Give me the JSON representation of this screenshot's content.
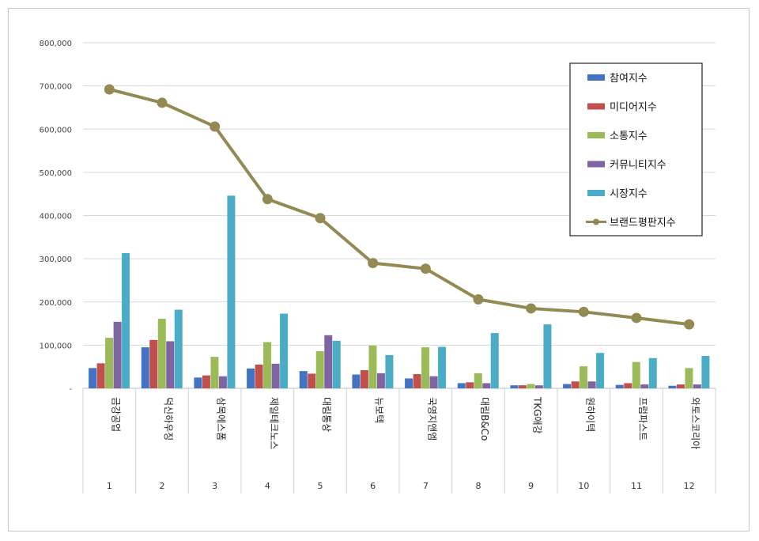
{
  "chart_data": {
    "type": "bar",
    "categories": [
      "금강공업",
      "덕신하우징",
      "삼목에스폼",
      "제일테크노스",
      "대림통상",
      "뉴보텍",
      "국영지앤엠",
      "대림B&Co",
      "TKG애강",
      "원하이텍",
      "프럼파스트",
      "와토스코리아"
    ],
    "rank_labels": [
      "1",
      "2",
      "3",
      "4",
      "5",
      "6",
      "7",
      "8",
      "9",
      "10",
      "11",
      "12"
    ],
    "ylim": [
      0,
      800000
    ],
    "yticks": [
      "-",
      "100,000",
      "200,000",
      "300,000",
      "400,000",
      "500,000",
      "600,000",
      "700,000",
      "800,000"
    ],
    "grid": true,
    "legend_position": "top-right",
    "series": [
      {
        "name": "참여지수",
        "type": "bar",
        "color": "#4472C4",
        "values": [
          47000,
          95000,
          25000,
          46000,
          40000,
          32000,
          23000,
          12000,
          7000,
          10000,
          8000,
          6000
        ]
      },
      {
        "name": "미디어지수",
        "type": "bar",
        "color": "#C0504D",
        "values": [
          58000,
          112000,
          30000,
          55000,
          34000,
          42000,
          33000,
          14000,
          7000,
          16000,
          12000,
          9000
        ]
      },
      {
        "name": "소통지수",
        "type": "bar",
        "color": "#9BBB59",
        "values": [
          117000,
          161000,
          73000,
          107000,
          86000,
          99000,
          95000,
          35000,
          10000,
          51000,
          61000,
          47000
        ]
      },
      {
        "name": "커뮤니티지수",
        "type": "bar",
        "color": "#8064A2",
        "values": [
          154000,
          109000,
          28000,
          57000,
          123000,
          35000,
          28000,
          12000,
          7000,
          16000,
          9000,
          9000
        ]
      },
      {
        "name": "시장지수",
        "type": "bar",
        "color": "#4BACC6",
        "values": [
          313000,
          182000,
          446000,
          173000,
          110000,
          77000,
          96000,
          128000,
          148000,
          82000,
          70000,
          75000
        ]
      },
      {
        "name": "브랜드평판지수",
        "type": "line",
        "color": "#938953",
        "values": [
          692000,
          661000,
          606000,
          438000,
          394000,
          290000,
          277000,
          206000,
          185000,
          177000,
          163000,
          148000
        ]
      }
    ]
  }
}
